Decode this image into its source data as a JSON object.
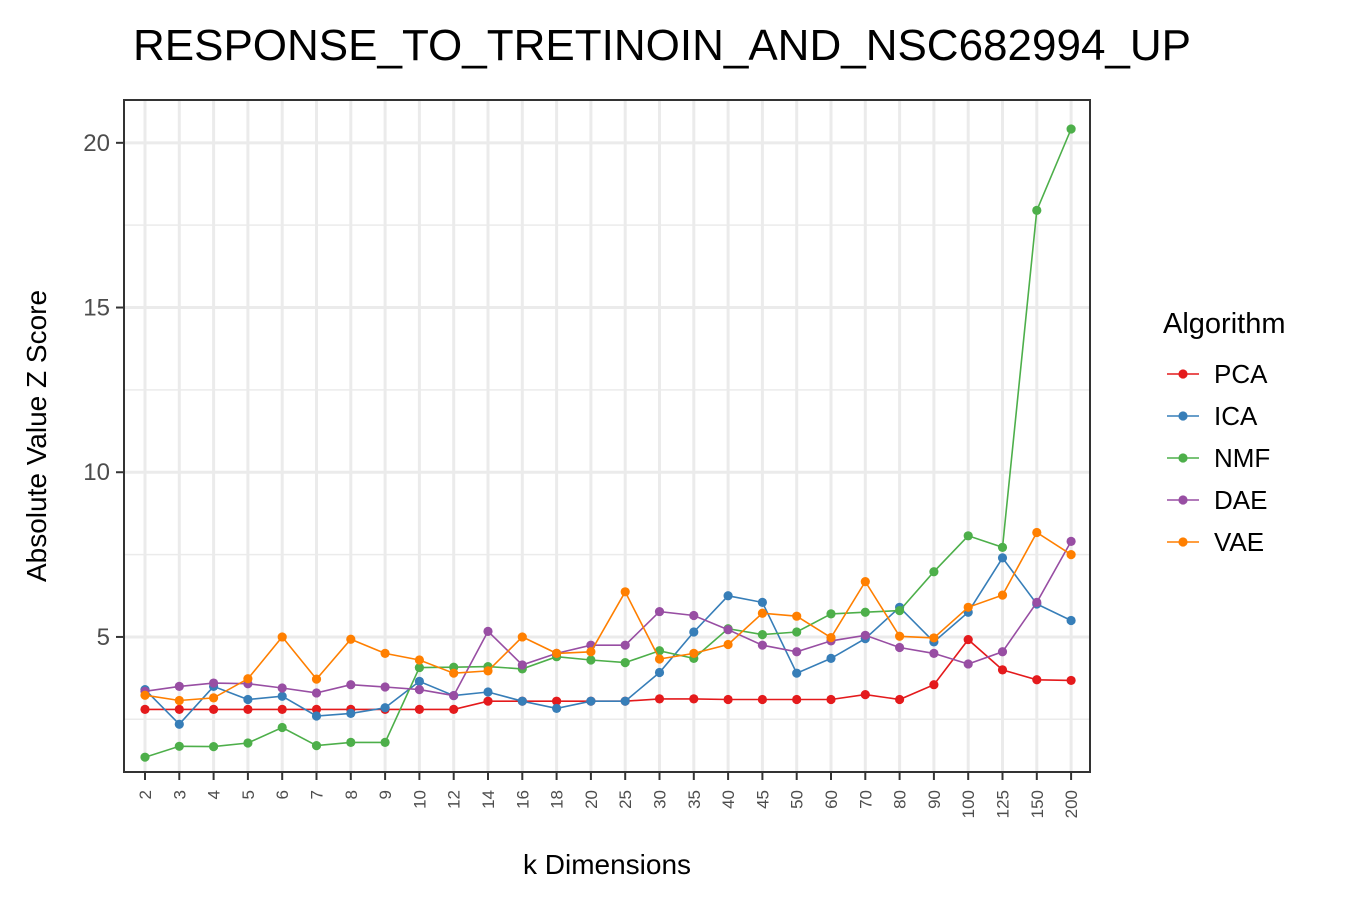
{
  "chart_data": {
    "type": "line",
    "title": "RESPONSE_TO_TRETINOIN_AND_NSC682994_UP",
    "xlabel": "k Dimensions",
    "ylabel": "Absolute Value Z Score",
    "ylim": [
      0.9,
      21.3
    ],
    "yticks": [
      5,
      10,
      15,
      20
    ],
    "grid": true,
    "legend": {
      "title": "Algorithm",
      "position": "right"
    },
    "categories": [
      "2",
      "3",
      "4",
      "5",
      "6",
      "7",
      "8",
      "9",
      "10",
      "12",
      "14",
      "16",
      "18",
      "20",
      "25",
      "30",
      "35",
      "40",
      "45",
      "50",
      "60",
      "70",
      "80",
      "90",
      "100",
      "125",
      "150",
      "200"
    ],
    "series": [
      {
        "name": "PCA",
        "color": "#e41a1c",
        "values": [
          2.8,
          2.8,
          2.8,
          2.8,
          2.8,
          2.8,
          2.8,
          2.8,
          2.8,
          2.8,
          3.05,
          3.05,
          3.05,
          3.05,
          3.05,
          3.12,
          3.12,
          3.1,
          3.1,
          3.1,
          3.1,
          3.25,
          3.1,
          3.55,
          4.92,
          4.0,
          3.7,
          3.68
        ]
      },
      {
        "name": "ICA",
        "color": "#377eb8",
        "values": [
          3.4,
          2.35,
          3.5,
          3.1,
          3.2,
          2.6,
          2.68,
          2.85,
          3.65,
          3.22,
          3.33,
          3.05,
          2.83,
          3.05,
          3.05,
          3.92,
          5.15,
          6.25,
          6.05,
          3.9,
          4.35,
          4.95,
          5.9,
          4.85,
          5.75,
          7.4,
          6.0,
          5.5
        ]
      },
      {
        "name": "NMF",
        "color": "#4daf4a",
        "values": [
          1.35,
          1.68,
          1.67,
          1.78,
          2.25,
          1.7,
          1.8,
          1.8,
          4.07,
          4.08,
          4.1,
          4.03,
          4.4,
          4.3,
          4.22,
          4.58,
          4.35,
          5.25,
          5.07,
          5.15,
          5.7,
          5.75,
          5.8,
          6.98,
          8.07,
          7.72,
          17.95,
          20.42
        ]
      },
      {
        "name": "DAE",
        "color": "#984ea3",
        "values": [
          3.35,
          3.5,
          3.6,
          3.58,
          3.45,
          3.3,
          3.55,
          3.48,
          3.4,
          3.22,
          5.17,
          4.15,
          4.5,
          4.75,
          4.75,
          5.77,
          5.65,
          5.22,
          4.75,
          4.55,
          4.88,
          5.05,
          4.68,
          4.5,
          4.18,
          4.55,
          6.05,
          7.9
        ]
      },
      {
        "name": "VAE",
        "color": "#ff7f00",
        "values": [
          3.23,
          3.07,
          3.15,
          3.73,
          5.0,
          3.72,
          4.93,
          4.5,
          4.3,
          3.9,
          3.97,
          5.0,
          4.5,
          4.55,
          6.37,
          4.33,
          4.5,
          4.77,
          5.72,
          5.63,
          4.98,
          6.68,
          5.02,
          4.97,
          5.9,
          6.27,
          8.17,
          7.5
        ]
      }
    ]
  }
}
